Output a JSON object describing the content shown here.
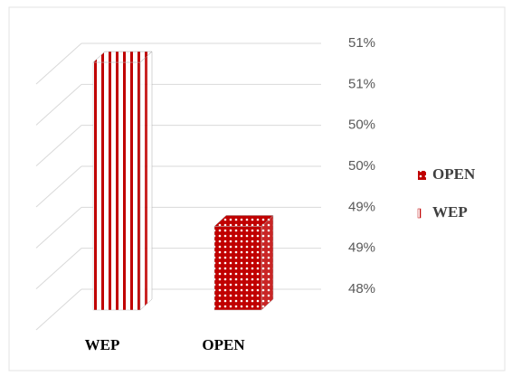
{
  "chart_data": {
    "type": "bar3d",
    "categories": [
      "WEP",
      "OPEN"
    ],
    "series": [
      {
        "name": "OPEN",
        "color": "#c00000",
        "pattern": "dots",
        "values": [
          null,
          48.9
        ]
      },
      {
        "name": "WEP",
        "color": "#c00000",
        "pattern": "stripes",
        "values": [
          50.9,
          null
        ]
      }
    ],
    "ylim": [
      48,
      51
    ],
    "yticks": [
      {
        "value": 48,
        "label": "48%"
      },
      {
        "value": 48.5,
        "label": "49%"
      },
      {
        "value": 49,
        "label": "49%"
      },
      {
        "value": 49.5,
        "label": "50%"
      },
      {
        "value": 50,
        "label": "50%"
      },
      {
        "value": 50.5,
        "label": "51%"
      },
      {
        "value": 51,
        "label": "51%"
      }
    ],
    "grid": true,
    "legend": "right"
  }
}
